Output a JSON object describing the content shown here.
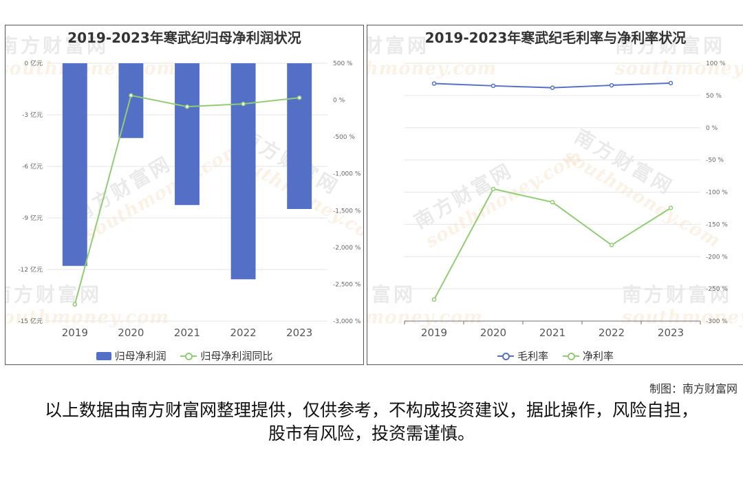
{
  "watermark": {
    "text": "南方财富网",
    "sub": "southmoney.com"
  },
  "credit": "制图：南方财富网",
  "disclaimer": "以上数据由南方财富网整理提供，仅供参考，不构成投资建议，据此操作，风险自担，股市有风险，投资需谨慎。",
  "chart_data": [
    {
      "type": "bar",
      "title": "2019-2023年寒武纪归母净利润状况",
      "categories": [
        "2019",
        "2020",
        "2021",
        "2022",
        "2023"
      ],
      "series": [
        {
          "name": "归母净利润",
          "type": "bar",
          "axis": "left",
          "color": "#5470c6",
          "values": [
            -11.79,
            -4.35,
            -8.25,
            -12.57,
            -8.48
          ]
        },
        {
          "name": "归母净利润同比",
          "type": "line",
          "axis": "right",
          "color": "#91cc75",
          "values": [
            -2773.0,
            63.1,
            -89.6,
            -52.3,
            32.5
          ]
        }
      ],
      "y_left": {
        "ylim": [
          -15,
          0
        ],
        "ticks": [
          0,
          -3,
          -6,
          -9,
          -12,
          -15
        ],
        "tick_labels": [
          "0 亿元",
          "-3 亿元",
          "-6 亿元",
          "-9 亿元",
          "-12 亿元",
          "-15 亿元"
        ]
      },
      "y_right": {
        "ylim": [
          -3000,
          500
        ],
        "ticks": [
          500,
          0,
          -500,
          -1000,
          -1500,
          -2000,
          -2500,
          -3000
        ],
        "tick_labels": [
          "500 %",
          "0 %",
          "-500 %",
          "-1,000 %",
          "-1,500 %",
          "-2,000 %",
          "-2,500 %",
          "-3,000 %"
        ]
      },
      "legend": "bottom",
      "grid": true
    },
    {
      "type": "line",
      "title": "2019-2023年寒武纪毛利率与净利率状况",
      "categories": [
        "2019",
        "2020",
        "2021",
        "2022",
        "2023"
      ],
      "series": [
        {
          "name": "毛利率",
          "color": "#5470c6",
          "values": [
            68.5,
            65.0,
            62.0,
            65.8,
            69.2
          ]
        },
        {
          "name": "净利率",
          "color": "#91cc75",
          "values": [
            -266.5,
            -95.0,
            -115.5,
            -182.0,
            -124.5
          ]
        }
      ],
      "y_right": {
        "ylim": [
          -300,
          100
        ],
        "ticks": [
          100,
          50,
          0,
          -50,
          -100,
          -150,
          -200,
          -250,
          -300
        ],
        "tick_labels": [
          "100 %",
          "50 %",
          "0 %",
          "-50 %",
          "-100 %",
          "-150 %",
          "-200 %",
          "-250 %",
          "-300 %"
        ]
      },
      "legend": "bottom",
      "grid": true
    }
  ]
}
